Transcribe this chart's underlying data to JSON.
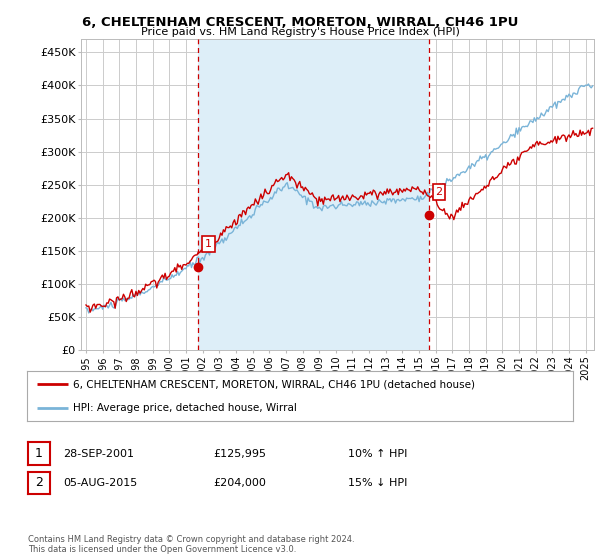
{
  "title": "6, CHELTENHAM CRESCENT, MORETON, WIRRAL, CH46 1PU",
  "subtitle": "Price paid vs. HM Land Registry's House Price Index (HPI)",
  "yticks": [
    0,
    50000,
    100000,
    150000,
    200000,
    250000,
    300000,
    350000,
    400000,
    450000
  ],
  "ytick_labels": [
    "£0",
    "£50K",
    "£100K",
    "£150K",
    "£200K",
    "£250K",
    "£300K",
    "£350K",
    "£400K",
    "£450K"
  ],
  "ylim": [
    0,
    470000
  ],
  "xlim_left": 1994.7,
  "xlim_right": 2025.5,
  "sale1": {
    "date_x": 2001.75,
    "price": 125995,
    "label": "1"
  },
  "sale2": {
    "date_x": 2015.58,
    "price": 204000,
    "label": "2"
  },
  "legend_entries": [
    "6, CHELTENHAM CRESCENT, MORETON, WIRRAL, CH46 1PU (detached house)",
    "HPI: Average price, detached house, Wirral"
  ],
  "table_rows": [
    {
      "num": "1",
      "date": "28-SEP-2001",
      "price": "£125,995",
      "pct": "10% ↑ HPI"
    },
    {
      "num": "2",
      "date": "05-AUG-2015",
      "price": "£204,000",
      "pct": "15% ↓ HPI"
    }
  ],
  "footer": "Contains HM Land Registry data © Crown copyright and database right 2024.\nThis data is licensed under the Open Government Licence v3.0.",
  "hpi_color": "#7ab4d8",
  "sale_color": "#cc0000",
  "vline_color": "#cc0000",
  "fill_color": "#ddeef8",
  "grid_color": "#cccccc",
  "bg_color": "#ffffff"
}
